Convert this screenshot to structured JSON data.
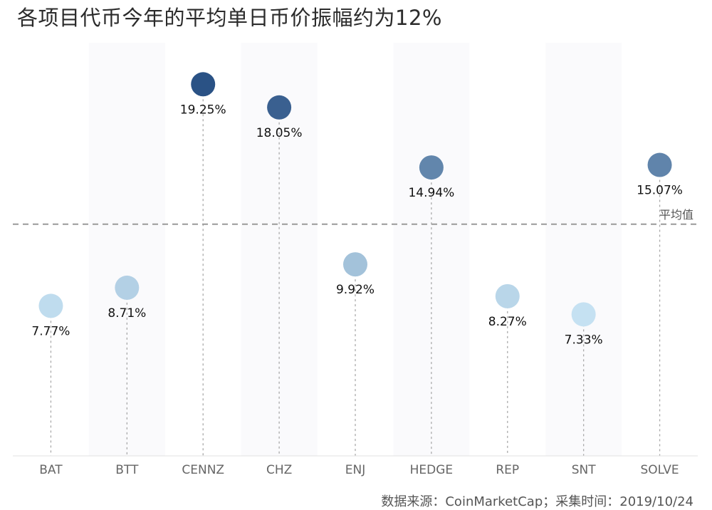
{
  "title": "各项目代币今年的平均单日币价振幅约为12%",
  "source": "数据来源：CoinMarketCap；采集时间：2019/10/24",
  "avg_label": "平均值",
  "chart_data": {
    "type": "scatter",
    "title": "各项目代币今年的平均单日币价振幅约为12%",
    "categories": [
      "BAT",
      "BTT",
      "CENNZ",
      "CHZ",
      "ENJ",
      "HEDGE",
      "REP",
      "SNT",
      "SOLVE"
    ],
    "values": [
      7.77,
      8.71,
      19.25,
      18.05,
      9.92,
      14.94,
      8.27,
      7.33,
      15.07
    ],
    "labels": [
      "7.77%",
      "8.71%",
      "19.25%",
      "18.05%",
      "9.92%",
      "14.94%",
      "8.27%",
      "7.33%",
      "15.07%"
    ],
    "reference_line": {
      "label": "平均值",
      "value": 12
    },
    "ylim": [
      0,
      21.4
    ],
    "grid": false,
    "color_scale": [
      "#c5e1f2",
      "#2a5285"
    ]
  }
}
